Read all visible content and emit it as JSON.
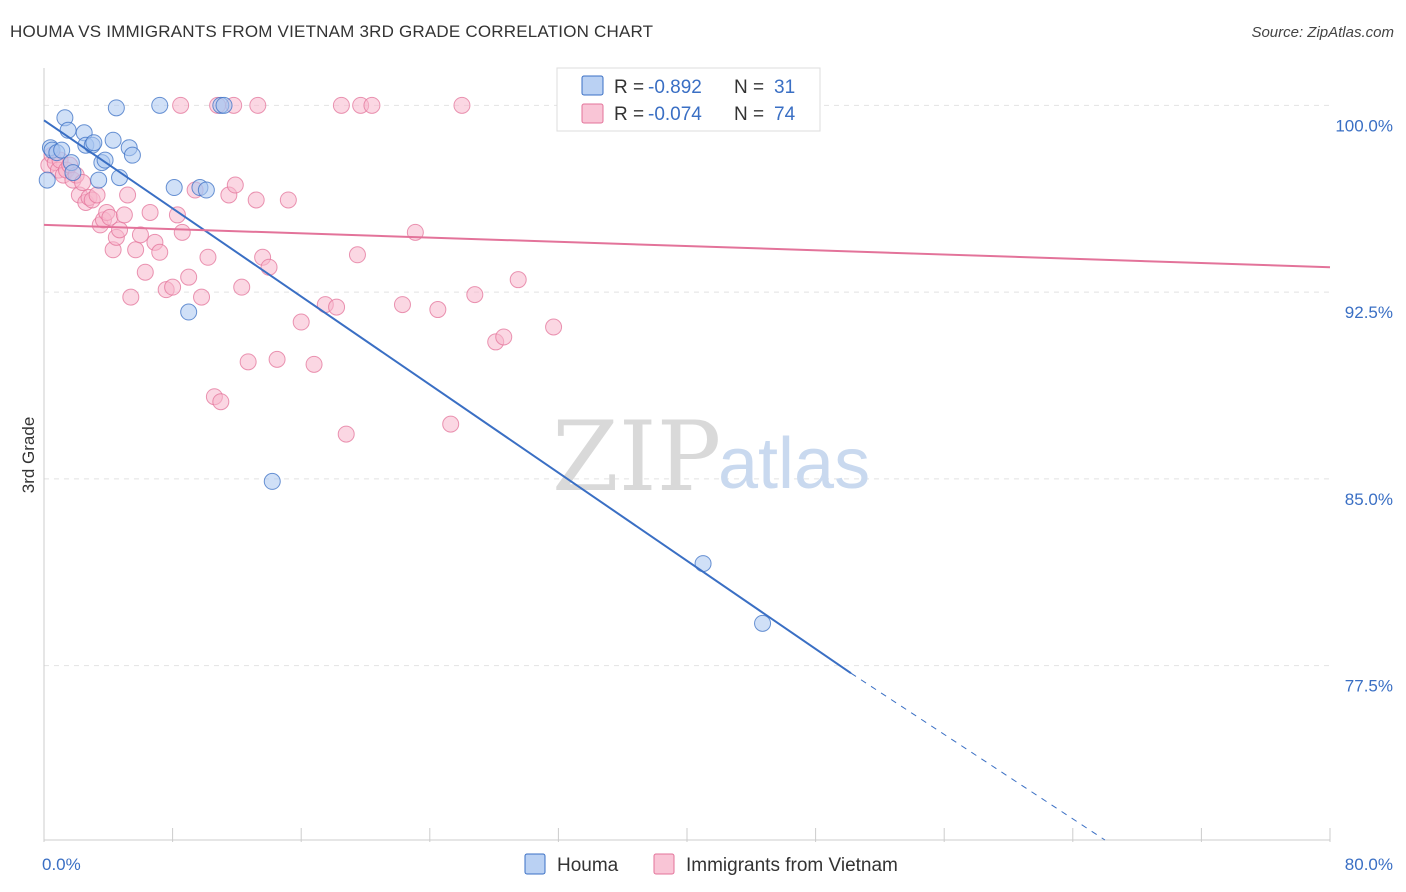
{
  "title": "HOUMA VS IMMIGRANTS FROM VIETNAM 3RD GRADE CORRELATION CHART",
  "source": "Source: ZipAtlas.com",
  "watermark": {
    "zip": "ZIP",
    "atlas": "atlas"
  },
  "colors": {
    "houma": "#3a6fc4",
    "houma_fill": "#a9c6f0",
    "vietnam": "#e3739a",
    "vietnam_fill": "#f7b7cc",
    "grid": "#e2e2e2",
    "tick_label": "#3a6fc4"
  },
  "legend": {
    "rows": [
      {
        "r_label": "R = ",
        "r_value": "-0.892",
        "n_label": "N = ",
        "n_value": "31"
      },
      {
        "r_label": "R = ",
        "r_value": "-0.074",
        "n_label": "N = ",
        "n_value": "74"
      }
    ]
  },
  "chart_data": {
    "type": "scatter",
    "title": "HOUMA VS IMMIGRANTS FROM VIETNAM 3RD GRADE CORRELATION CHART",
    "xlabel": "",
    "ylabel": "3rd Grade",
    "xlim": [
      0,
      80
    ],
    "ylim": [
      70.5,
      101.5
    ],
    "x_tick_labels": [
      "0.0%",
      "80.0%"
    ],
    "y_ticks": [
      100,
      92.5,
      85,
      77.5
    ],
    "y_tick_labels": [
      "100.0%",
      "92.5%",
      "85.0%",
      "77.5%"
    ],
    "grid": true,
    "legend_placement": "top-center",
    "series": [
      {
        "name": "Houma",
        "points": [
          [
            0.2,
            97.0
          ],
          [
            0.4,
            98.3
          ],
          [
            0.5,
            98.2
          ],
          [
            0.8,
            98.1
          ],
          [
            1.1,
            98.2
          ],
          [
            1.3,
            99.5
          ],
          [
            1.5,
            99.0
          ],
          [
            1.7,
            97.7
          ],
          [
            1.8,
            97.3
          ],
          [
            2.5,
            98.9
          ],
          [
            2.6,
            98.4
          ],
          [
            3.0,
            98.4
          ],
          [
            3.1,
            98.5
          ],
          [
            3.4,
            97.0
          ],
          [
            3.6,
            97.7
          ],
          [
            3.8,
            97.8
          ],
          [
            4.3,
            98.6
          ],
          [
            4.5,
            99.9
          ],
          [
            4.7,
            97.1
          ],
          [
            5.3,
            98.3
          ],
          [
            5.5,
            98.0
          ],
          [
            7.2,
            100.0
          ],
          [
            8.1,
            96.7
          ],
          [
            9.0,
            91.7
          ],
          [
            9.7,
            96.7
          ],
          [
            10.1,
            96.6
          ],
          [
            11.0,
            100.0
          ],
          [
            11.2,
            100.0
          ],
          [
            14.2,
            84.9
          ],
          [
            41.0,
            81.6
          ],
          [
            44.7,
            79.2
          ]
        ],
        "trend": {
          "x": [
            0,
            50.2
          ],
          "y": [
            99.4,
            77.2
          ],
          "dashed_to": [
            66.0,
            70.5
          ]
        }
      },
      {
        "name": "Immigrants from Vietnam",
        "points": [
          [
            0.3,
            97.6
          ],
          [
            0.5,
            98.0
          ],
          [
            0.7,
            97.7
          ],
          [
            0.9,
            97.4
          ],
          [
            1.0,
            97.8
          ],
          [
            1.2,
            97.2
          ],
          [
            1.4,
            97.4
          ],
          [
            1.6,
            97.6
          ],
          [
            1.8,
            97.0
          ],
          [
            2.0,
            97.2
          ],
          [
            2.2,
            96.4
          ],
          [
            2.4,
            96.9
          ],
          [
            2.6,
            96.1
          ],
          [
            2.8,
            96.3
          ],
          [
            3.0,
            96.2
          ],
          [
            3.3,
            96.4
          ],
          [
            3.5,
            95.2
          ],
          [
            3.7,
            95.4
          ],
          [
            3.9,
            95.7
          ],
          [
            4.1,
            95.5
          ],
          [
            4.3,
            94.2
          ],
          [
            4.5,
            94.7
          ],
          [
            4.7,
            95.0
          ],
          [
            5.0,
            95.6
          ],
          [
            5.2,
            96.4
          ],
          [
            5.4,
            92.3
          ],
          [
            5.7,
            94.2
          ],
          [
            6.0,
            94.8
          ],
          [
            6.3,
            93.3
          ],
          [
            6.6,
            95.7
          ],
          [
            6.9,
            94.5
          ],
          [
            7.2,
            94.1
          ],
          [
            7.6,
            92.6
          ],
          [
            8.0,
            92.7
          ],
          [
            8.3,
            95.6
          ],
          [
            8.6,
            94.9
          ],
          [
            9.0,
            93.1
          ],
          [
            9.4,
            96.6
          ],
          [
            9.8,
            92.3
          ],
          [
            10.2,
            93.9
          ],
          [
            10.6,
            88.3
          ],
          [
            11.0,
            88.1
          ],
          [
            11.5,
            96.4
          ],
          [
            11.9,
            96.8
          ],
          [
            12.3,
            92.7
          ],
          [
            12.7,
            89.7
          ],
          [
            13.2,
            96.2
          ],
          [
            13.6,
            93.9
          ],
          [
            14.0,
            93.5
          ],
          [
            14.5,
            89.8
          ],
          [
            15.2,
            96.2
          ],
          [
            16.0,
            91.3
          ],
          [
            16.8,
            89.6
          ],
          [
            17.5,
            92.0
          ],
          [
            18.2,
            91.9
          ],
          [
            18.8,
            86.8
          ],
          [
            19.5,
            94.0
          ],
          [
            22.3,
            92.0
          ],
          [
            23.1,
            94.9
          ],
          [
            24.5,
            91.8
          ],
          [
            25.3,
            87.2
          ],
          [
            26.8,
            92.4
          ],
          [
            28.1,
            90.5
          ],
          [
            28.6,
            90.7
          ],
          [
            29.5,
            93.0
          ],
          [
            31.7,
            91.1
          ],
          [
            8.5,
            100.0
          ],
          [
            10.8,
            100.0
          ],
          [
            11.8,
            100.0
          ],
          [
            13.3,
            100.0
          ],
          [
            18.5,
            100.0
          ],
          [
            19.7,
            100.0
          ],
          [
            20.4,
            100.0
          ],
          [
            26.0,
            100.0
          ]
        ],
        "trend": {
          "x": [
            0,
            80
          ],
          "y": [
            95.2,
            93.5
          ]
        }
      }
    ]
  },
  "bottom_legend": [
    "Houma",
    "Immigrants from Vietnam"
  ]
}
